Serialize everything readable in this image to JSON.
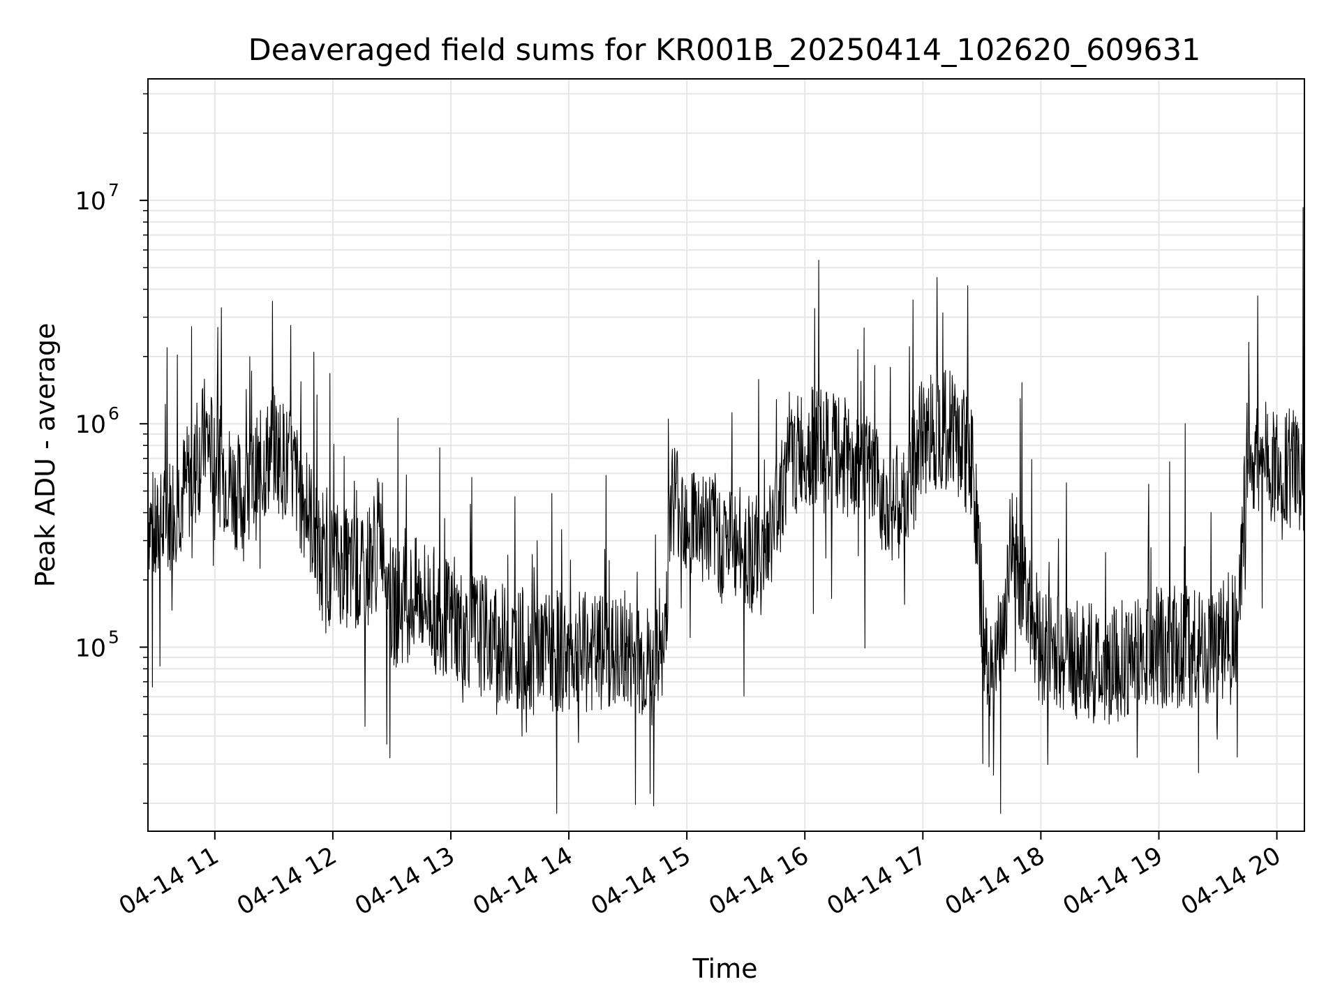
{
  "chart_data": {
    "type": "line",
    "title": "Deaveraged field sums for KR001B_20250414_102620_609631",
    "xlabel": "Time",
    "ylabel": "Peak ADU - average",
    "y_scale": "log",
    "ylim": [
      15000,
      35000000
    ],
    "xlim": [
      "2025-04-14 10:26",
      "2025-04-14 20:14"
    ],
    "grid": true,
    "line_color": "#000000",
    "grid_color": "#e6e6e6",
    "x_ticks": [
      "04-14 11",
      "04-14 12",
      "04-14 13",
      "04-14 14",
      "04-14 15",
      "04-14 16",
      "04-14 17",
      "04-14 18",
      "04-14 19",
      "04-14 20"
    ],
    "y_ticks": [
      {
        "value": 100000,
        "base": "10",
        "exp": "5"
      },
      {
        "value": 1000000,
        "base": "10",
        "exp": "6"
      },
      {
        "value": 10000000,
        "base": "10",
        "exp": "7"
      }
    ],
    "series": [
      {
        "x": [
          "2025-04-14 10:26",
          "2025-04-14 10:30",
          "2025-04-14 10:40",
          "2025-04-14 10:50",
          "2025-04-14 10:55",
          "2025-04-14 11:00",
          "2025-04-14 11:15",
          "2025-04-14 11:30",
          "2025-04-14 11:40",
          "2025-04-14 11:50",
          "2025-04-14 11:55",
          "2025-04-14 12:00",
          "2025-04-14 12:15",
          "2025-04-14 12:25",
          "2025-04-14 12:30",
          "2025-04-14 12:45",
          "2025-04-14 13:00",
          "2025-04-14 13:30",
          "2025-04-14 14:00",
          "2025-04-14 14:30",
          "2025-04-14 14:48",
          "2025-04-14 14:52",
          "2025-04-14 15:00",
          "2025-04-14 15:20",
          "2025-04-14 15:40",
          "2025-04-14 15:50",
          "2025-04-14 16:00",
          "2025-04-14 16:20",
          "2025-04-14 16:40",
          "2025-04-14 16:50",
          "2025-04-14 17:00",
          "2025-04-14 17:15",
          "2025-04-14 17:25",
          "2025-04-14 17:32",
          "2025-04-14 17:40",
          "2025-04-14 17:45",
          "2025-04-14 17:55",
          "2025-04-14 18:00",
          "2025-04-14 18:30",
          "2025-04-14 19:00",
          "2025-04-14 19:30",
          "2025-04-14 19:40",
          "2025-04-14 19:45",
          "2025-04-14 20:00",
          "2025-04-14 20:14"
        ],
        "y": [
          400000,
          300000,
          450000,
          600000,
          900000,
          700000,
          450000,
          800000,
          600000,
          350000,
          200000,
          250000,
          200000,
          350000,
          150000,
          170000,
          130000,
          100000,
          95000,
          90000,
          80000,
          500000,
          400000,
          300000,
          250000,
          600000,
          800000,
          700000,
          500000,
          400000,
          900000,
          1000000,
          700000,
          80000,
          100000,
          300000,
          150000,
          100000,
          80000,
          100000,
          100000,
          130000,
          700000,
          650000,
          600000
        ]
      }
    ]
  }
}
